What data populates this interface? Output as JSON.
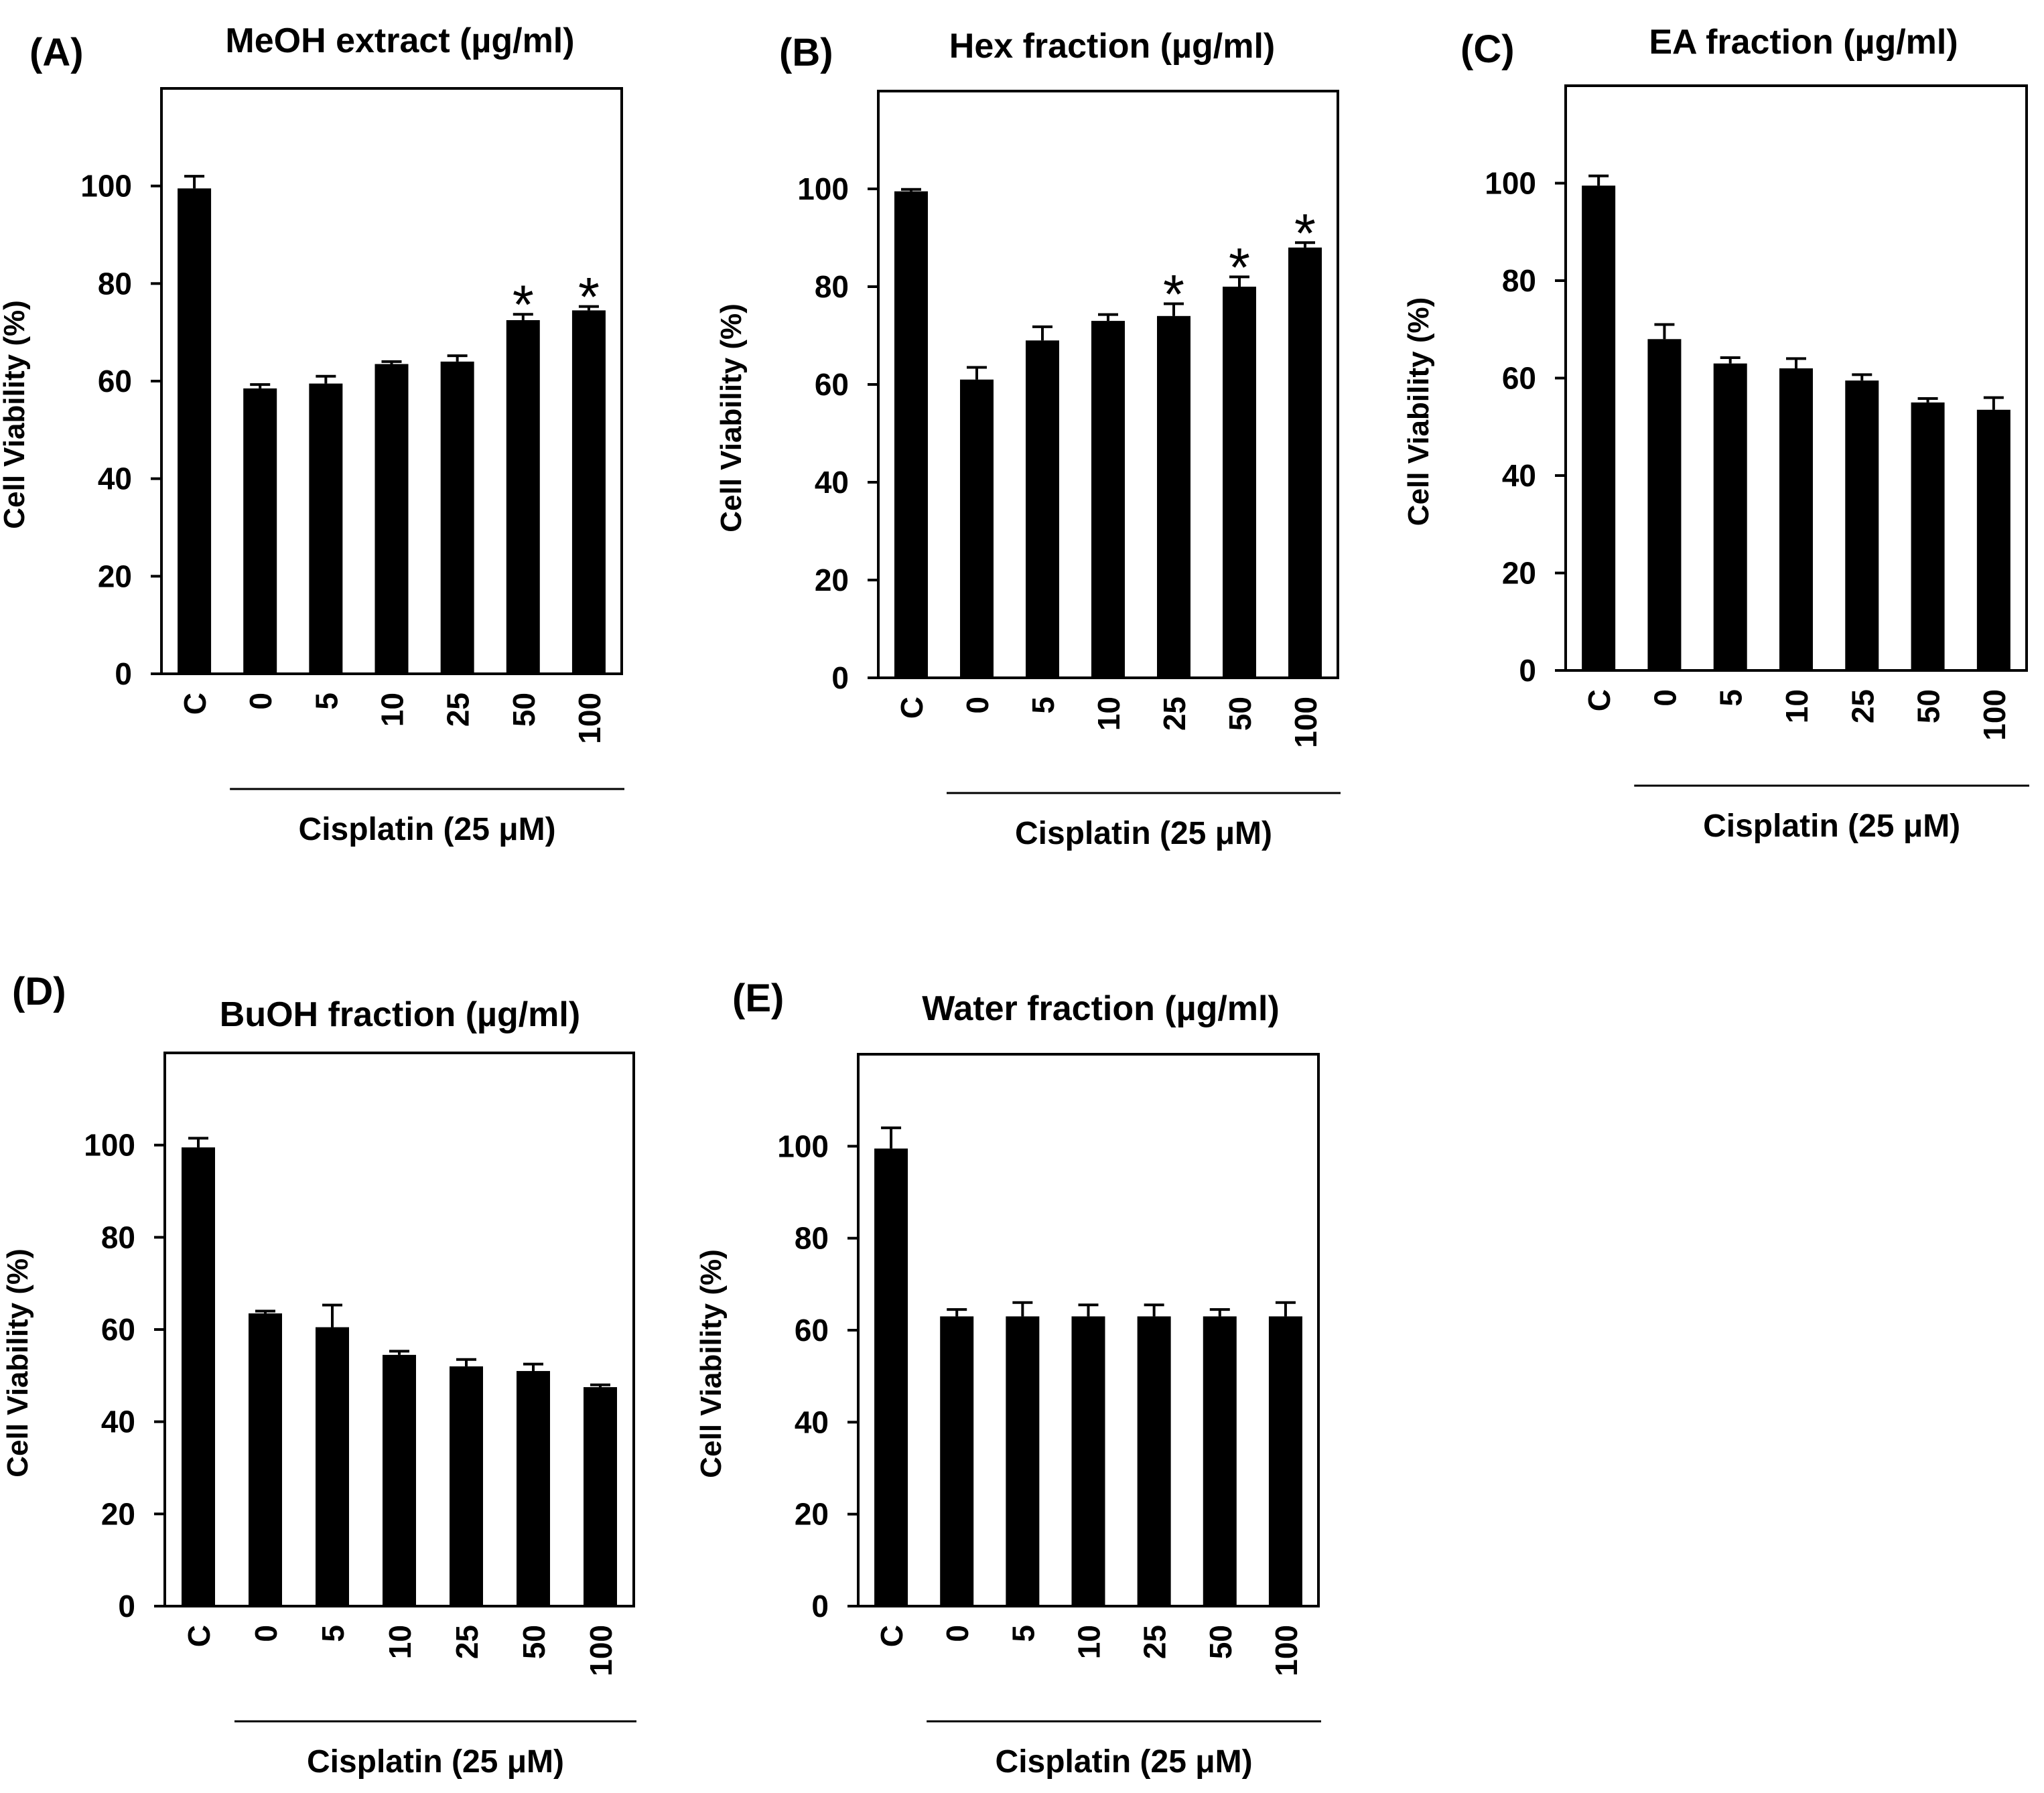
{
  "chart_data": [
    {
      "type": "bar",
      "panel": "(A)",
      "title": "MeOH extract (µg/ml)",
      "ylabel": "Cell Viability (%)",
      "ylim": [
        0,
        120
      ],
      "yticks": [
        0,
        20,
        40,
        60,
        80,
        100
      ],
      "categories": [
        "C",
        "0",
        "5",
        "10",
        "25",
        "50",
        "100"
      ],
      "values": [
        99.5,
        58.5,
        59.5,
        63.5,
        64,
        72.5,
        74.5
      ],
      "errors": [
        2.5,
        0.8,
        1.5,
        0.5,
        1.2,
        1.2,
        0.8
      ],
      "significance": [
        "",
        "",
        "",
        "",
        "",
        "*",
        "*"
      ],
      "group_label": "Cisplatin (25 μM)",
      "grid": false
    },
    {
      "type": "bar",
      "panel": "(B)",
      "title": "Hex fraction (µg/ml)",
      "ylabel": "Cell Viability (%)",
      "ylim": [
        0,
        120
      ],
      "yticks": [
        0,
        20,
        40,
        60,
        80,
        100
      ],
      "categories": [
        "C",
        "0",
        "5",
        "10",
        "25",
        "50",
        "100"
      ],
      "values": [
        99.5,
        61,
        69,
        73,
        74,
        80,
        88
      ],
      "errors": [
        0.4,
        2.5,
        2.8,
        1.3,
        2.5,
        2,
        1
      ],
      "significance": [
        "",
        "",
        "",
        "",
        "*",
        "*",
        "*"
      ],
      "group_label": "Cisplatin (25 μM)",
      "grid": false
    },
    {
      "type": "bar",
      "panel": "(C)",
      "title": "EA fraction (µg/ml)",
      "ylabel": "Cell Viability (%)",
      "ylim": [
        0,
        120
      ],
      "yticks": [
        0,
        20,
        40,
        60,
        80,
        100
      ],
      "categories": [
        "C",
        "0",
        "5",
        "10",
        "25",
        "50",
        "100"
      ],
      "values": [
        99.5,
        68,
        63,
        62,
        59.5,
        55,
        53.5
      ],
      "errors": [
        2,
        3,
        1.2,
        2,
        1.2,
        0.8,
        2.5
      ],
      "significance": [
        "",
        "",
        "",
        "",
        "",
        "",
        ""
      ],
      "group_label": "Cisplatin (25 μM)",
      "grid": false
    },
    {
      "type": "bar",
      "panel": "(D)",
      "title": "BuOH fraction (µg/ml)",
      "ylabel": "Cell Viability (%)",
      "ylim": [
        0,
        120
      ],
      "yticks": [
        0,
        20,
        40,
        60,
        80,
        100
      ],
      "categories": [
        "C",
        "0",
        "5",
        "10",
        "25",
        "50",
        "100"
      ],
      "values": [
        99.5,
        63.5,
        60.5,
        54.5,
        52,
        51,
        47.5
      ],
      "errors": [
        2,
        0.5,
        4.8,
        0.8,
        1.5,
        1.5,
        0.5
      ],
      "significance": [
        "",
        "",
        "",
        "",
        "",
        "",
        ""
      ],
      "group_label": "Cisplatin (25 μM)",
      "grid": false
    },
    {
      "type": "bar",
      "panel": "(E)",
      "title": "Water fraction (µg/ml)",
      "ylabel": "Cell Viability (%)",
      "ylim": [
        0,
        120
      ],
      "yticks": [
        0,
        20,
        40,
        60,
        80,
        100
      ],
      "categories": [
        "C",
        "0",
        "5",
        "10",
        "25",
        "50",
        "100"
      ],
      "values": [
        99.5,
        63,
        63,
        63,
        63,
        63,
        63
      ],
      "errors": [
        4.5,
        1.5,
        3,
        2.5,
        2.5,
        1.5,
        3
      ],
      "significance": [
        "",
        "",
        "",
        "",
        "",
        "",
        ""
      ],
      "group_label": "Cisplatin (25 μM)",
      "grid": false
    }
  ],
  "colors": {
    "bar": "#000000",
    "axis": "#000000",
    "background": "#ffffff"
  }
}
